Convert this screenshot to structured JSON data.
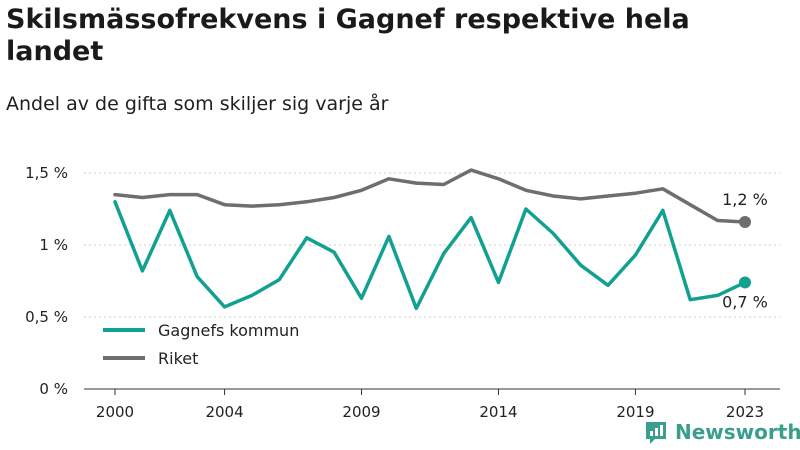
{
  "title": "Skilsmässofrekvens i Gagnef respektive hela landet",
  "subtitle": "Andel av de gifta som skiljer sig varje år",
  "brand": {
    "name": "Newsworthy",
    "color": "#3a9e8e"
  },
  "chart_data": {
    "type": "line",
    "title": "Skilsmässofrekvens i Gagnef respektive hela landet",
    "subtitle": "Andel av de gifta som skiljer sig varje år",
    "x": [
      2000,
      2001,
      2002,
      2003,
      2004,
      2005,
      2006,
      2007,
      2008,
      2009,
      2010,
      2011,
      2012,
      2013,
      2014,
      2015,
      2016,
      2017,
      2018,
      2019,
      2020,
      2021,
      2022,
      2023
    ],
    "x_ticks": [
      "2000",
      "2004",
      "2009",
      "2014",
      "2019",
      "2023"
    ],
    "y_ticks": [
      "0 %",
      "0,5 %",
      "1 %",
      "1,5 %"
    ],
    "ylim": [
      0,
      1.5
    ],
    "grid": true,
    "legend_position": "bottom-left",
    "series": [
      {
        "name": "Gagnefs kommun",
        "color": "#12a191",
        "values": [
          1.3,
          0.82,
          1.24,
          0.78,
          0.57,
          0.65,
          0.76,
          1.05,
          0.95,
          0.63,
          1.06,
          0.56,
          0.94,
          1.19,
          0.74,
          1.25,
          1.08,
          0.86,
          0.72,
          0.93,
          1.24,
          0.62,
          0.65,
          0.74
        ],
        "end_label": "0,7 %"
      },
      {
        "name": "Riket",
        "color": "#6e6d72",
        "values": [
          1.35,
          1.33,
          1.35,
          1.35,
          1.28,
          1.27,
          1.28,
          1.3,
          1.33,
          1.38,
          1.46,
          1.43,
          1.42,
          1.52,
          1.46,
          1.38,
          1.34,
          1.32,
          1.34,
          1.36,
          1.39,
          1.28,
          1.17,
          1.16
        ],
        "end_label": "1,2 %"
      }
    ]
  }
}
